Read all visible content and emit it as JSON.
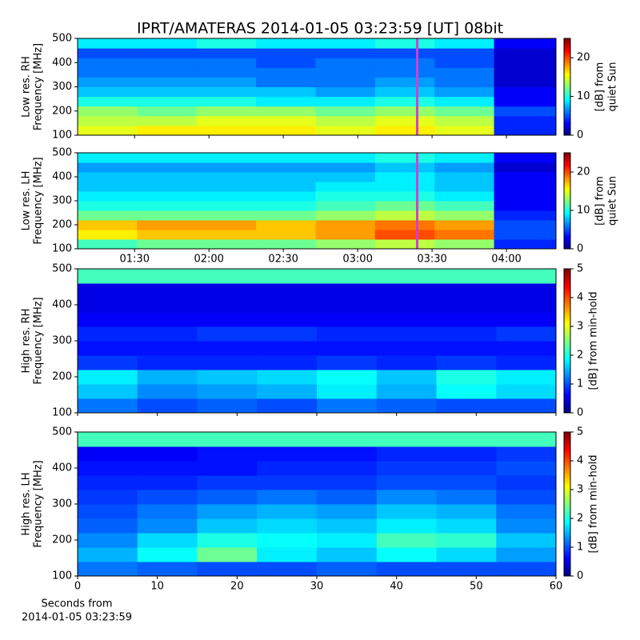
{
  "chart_data": [
    {
      "type": "heatmap",
      "title": "IPRT/AMATERAS 2014-01-05 03:23:59 [UT]   08bit",
      "ylabel": [
        "Low res. RH",
        "Frequency [MHz]"
      ],
      "colorbar_label": [
        "[dB] from",
        "quiet Sun"
      ],
      "colormap": "jet",
      "xlim": [
        67,
        260
      ],
      "xticks": [
        {
          "value": 90,
          "label": "01:30"
        },
        {
          "value": 120,
          "label": "02:00"
        },
        {
          "value": 150,
          "label": "02:30"
        },
        {
          "value": 180,
          "label": "03:00"
        },
        {
          "value": 210,
          "label": "03:30"
        },
        {
          "value": 240,
          "label": "04:00"
        }
      ],
      "show_xticklabels": false,
      "ylim": [
        100,
        500
      ],
      "yticks": [
        100,
        200,
        300,
        400,
        500
      ],
      "clim": [
        0,
        25
      ],
      "cticks": [
        0,
        10,
        20
      ],
      "marker_x": 204,
      "marker_color": "#d040d0",
      "xbins": [
        67,
        91,
        115,
        139,
        163,
        187,
        211,
        235,
        260
      ],
      "ybins": [
        100,
        140,
        180,
        220,
        260,
        300,
        340,
        380,
        420,
        460,
        500
      ],
      "values": [
        [
          15,
          16,
          16,
          16,
          15,
          16,
          15,
          4
        ],
        [
          14,
          14,
          15,
          15,
          14,
          15,
          14,
          4
        ],
        [
          13,
          12,
          13,
          13,
          12,
          13,
          12,
          5
        ],
        [
          10,
          10,
          10,
          9,
          9,
          10,
          9,
          3
        ],
        [
          8,
          8,
          8,
          8,
          7,
          8,
          7,
          3
        ],
        [
          7,
          7,
          7,
          6,
          6,
          7,
          6,
          2
        ],
        [
          6,
          6,
          6,
          6,
          6,
          6,
          6,
          2
        ],
        [
          6,
          6,
          6,
          5,
          6,
          6,
          5,
          2
        ],
        [
          5,
          5,
          5,
          5,
          5,
          5,
          5,
          2
        ],
        [
          9,
          9,
          10,
          9,
          9,
          10,
          9,
          3
        ]
      ]
    },
    {
      "type": "heatmap",
      "ylabel": [
        "Low res. LH",
        "Frequency [MHz]"
      ],
      "colorbar_label": [
        "[dB] from",
        "quiet Sun"
      ],
      "colormap": "jet",
      "xlim": [
        67,
        260
      ],
      "xticks": [
        {
          "value": 90,
          "label": "01:30"
        },
        {
          "value": 120,
          "label": "02:00"
        },
        {
          "value": 150,
          "label": "02:30"
        },
        {
          "value": 180,
          "label": "03:00"
        },
        {
          "value": 210,
          "label": "03:30"
        },
        {
          "value": 240,
          "label": "04:00"
        }
      ],
      "show_xticklabels": true,
      "ylim": [
        100,
        500
      ],
      "yticks": [
        100,
        200,
        300,
        400,
        500
      ],
      "clim": [
        0,
        25
      ],
      "cticks": [
        0,
        10,
        20
      ],
      "marker_x": 204,
      "marker_color": "#d040d0",
      "xbins": [
        67,
        91,
        115,
        139,
        163,
        187,
        211,
        235,
        260
      ],
      "ybins": [
        100,
        140,
        180,
        220,
        260,
        300,
        340,
        380,
        420,
        460,
        500
      ],
      "values": [
        [
          11,
          12,
          12,
          12,
          13,
          14,
          13,
          4
        ],
        [
          16,
          17,
          17,
          17,
          18,
          20,
          19,
          5
        ],
        [
          17,
          18,
          18,
          17,
          18,
          19,
          18,
          5
        ],
        [
          12,
          12,
          12,
          12,
          13,
          14,
          13,
          4
        ],
        [
          10,
          10,
          10,
          10,
          11,
          12,
          11,
          3
        ],
        [
          9,
          9,
          9,
          9,
          10,
          10,
          9,
          3
        ],
        [
          8,
          8,
          8,
          8,
          9,
          9,
          8,
          3
        ],
        [
          8,
          8,
          8,
          8,
          8,
          9,
          8,
          3
        ],
        [
          7,
          7,
          7,
          7,
          7,
          8,
          7,
          2
        ],
        [
          9,
          9,
          9,
          9,
          9,
          10,
          9,
          3
        ]
      ]
    },
    {
      "type": "heatmap",
      "ylabel": [
        "High res. RH",
        "Frequency [MHz]"
      ],
      "colorbar_label": [
        "[dB] from min-hold"
      ],
      "colormap": "jet",
      "xlim": [
        0,
        60
      ],
      "xticks": [
        0,
        10,
        20,
        30,
        40,
        50,
        60
      ],
      "show_xticklabels": false,
      "ylim": [
        100,
        500
      ],
      "yticks": [
        100,
        200,
        300,
        400,
        500
      ],
      "clim": [
        0,
        5
      ],
      "cticks": [
        0,
        1,
        2,
        3,
        4,
        5
      ],
      "xbins": [
        0,
        7.5,
        15,
        22.5,
        30,
        37.5,
        45,
        52.5,
        60
      ],
      "ybins": [
        100,
        140,
        180,
        220,
        260,
        300,
        340,
        380,
        420,
        460,
        500
      ],
      "values": [
        [
          1.2,
          1.0,
          1.1,
          1.0,
          1.2,
          1.1,
          1.0,
          1.0
        ],
        [
          1.6,
          1.3,
          1.4,
          1.5,
          1.8,
          1.5,
          1.9,
          1.7
        ],
        [
          1.8,
          1.5,
          1.6,
          1.7,
          1.9,
          1.6,
          2.0,
          1.8
        ],
        [
          0.9,
          0.8,
          0.8,
          0.8,
          0.9,
          0.8,
          0.9,
          0.8
        ],
        [
          0.7,
          0.7,
          0.7,
          0.7,
          0.7,
          0.7,
          0.7,
          0.7
        ],
        [
          0.8,
          0.8,
          0.9,
          0.9,
          0.8,
          0.8,
          0.8,
          0.9
        ],
        [
          0.6,
          0.6,
          0.6,
          0.6,
          0.6,
          0.6,
          0.6,
          0.6
        ],
        [
          0.5,
          0.5,
          0.5,
          0.5,
          0.5,
          0.5,
          0.5,
          0.5
        ],
        [
          0.5,
          0.5,
          0.5,
          0.5,
          0.5,
          0.5,
          0.5,
          0.5
        ],
        [
          2.2,
          2.2,
          2.2,
          2.2,
          2.2,
          2.2,
          2.2,
          2.2
        ]
      ]
    },
    {
      "type": "heatmap",
      "ylabel": [
        "High res. LH",
        "Frequency [MHz]"
      ],
      "colorbar_label": [
        "[dB] from min-hold"
      ],
      "colormap": "jet",
      "xlabel": [
        "Seconds from",
        "2014-01-05 03:23:59"
      ],
      "xlim": [
        0,
        60
      ],
      "xticks": [
        0,
        10,
        20,
        30,
        40,
        50,
        60
      ],
      "show_xticklabels": true,
      "ylim": [
        100,
        500
      ],
      "yticks": [
        100,
        200,
        300,
        400,
        500
      ],
      "clim": [
        0,
        5
      ],
      "cticks": [
        0,
        1,
        2,
        3,
        4,
        5
      ],
      "xbins": [
        0,
        7.5,
        15,
        22.5,
        30,
        37.5,
        45,
        52.5,
        60
      ],
      "ybins": [
        100,
        140,
        180,
        220,
        260,
        300,
        340,
        380,
        420,
        460,
        500
      ],
      "values": [
        [
          1.2,
          1.1,
          1.0,
          1.0,
          1.1,
          1.0,
          1.0,
          1.0
        ],
        [
          1.5,
          1.9,
          2.4,
          1.8,
          1.6,
          1.9,
          1.7,
          1.4
        ],
        [
          1.3,
          1.7,
          2.0,
          1.9,
          1.8,
          2.2,
          2.1,
          1.6
        ],
        [
          1.1,
          1.3,
          1.6,
          1.7,
          1.6,
          1.8,
          1.7,
          1.3
        ],
        [
          1.0,
          1.2,
          1.4,
          1.5,
          1.4,
          1.6,
          1.5,
          1.2
        ],
        [
          0.9,
          1.0,
          1.1,
          1.2,
          1.1,
          1.3,
          1.2,
          1.0
        ],
        [
          0.8,
          0.8,
          0.9,
          0.9,
          0.9,
          1.0,
          1.0,
          0.9
        ],
        [
          0.7,
          0.7,
          0.7,
          0.8,
          0.8,
          0.9,
          0.9,
          1.0
        ],
        [
          0.6,
          0.6,
          0.7,
          0.7,
          0.7,
          0.8,
          0.8,
          0.9
        ],
        [
          2.2,
          2.2,
          2.2,
          2.2,
          2.2,
          2.2,
          2.2,
          2.2
        ]
      ]
    }
  ]
}
